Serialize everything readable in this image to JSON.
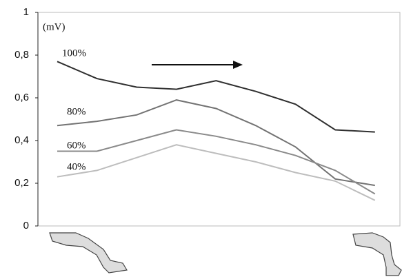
{
  "chart_data": {
    "type": "line",
    "y_label": "(mV)",
    "categories": [
      null,
      null,
      null,
      null,
      null,
      null,
      null,
      null,
      null
    ],
    "series": [
      {
        "name": "100%",
        "color": "#2f2f2f",
        "values": [
          0.77,
          0.69,
          0.65,
          0.64,
          0.68,
          0.63,
          0.57,
          0.45,
          0.44
        ]
      },
      {
        "name": "80%",
        "color": "#737373",
        "values": [
          0.47,
          0.49,
          0.52,
          0.59,
          0.55,
          0.47,
          0.37,
          0.22,
          0.19
        ]
      },
      {
        "name": "60%",
        "color": "#8a8a8a",
        "values": [
          0.35,
          0.35,
          0.4,
          0.45,
          0.42,
          0.38,
          0.33,
          0.26,
          0.15
        ]
      },
      {
        "name": "40%",
        "color": "#bdbdbd",
        "values": [
          0.23,
          0.26,
          0.32,
          0.38,
          0.34,
          0.3,
          0.25,
          0.21,
          0.12
        ]
      }
    ],
    "ylim": [
      0,
      1
    ],
    "yticks": [
      0,
      {
        "value": 0.2,
        "label": "0,2"
      },
      {
        "value": 0.4,
        "label": "0,4"
      },
      {
        "value": 0.6,
        "label": "0,6"
      },
      {
        "value": 0.8,
        "label": "0,8"
      },
      1
    ]
  }
}
